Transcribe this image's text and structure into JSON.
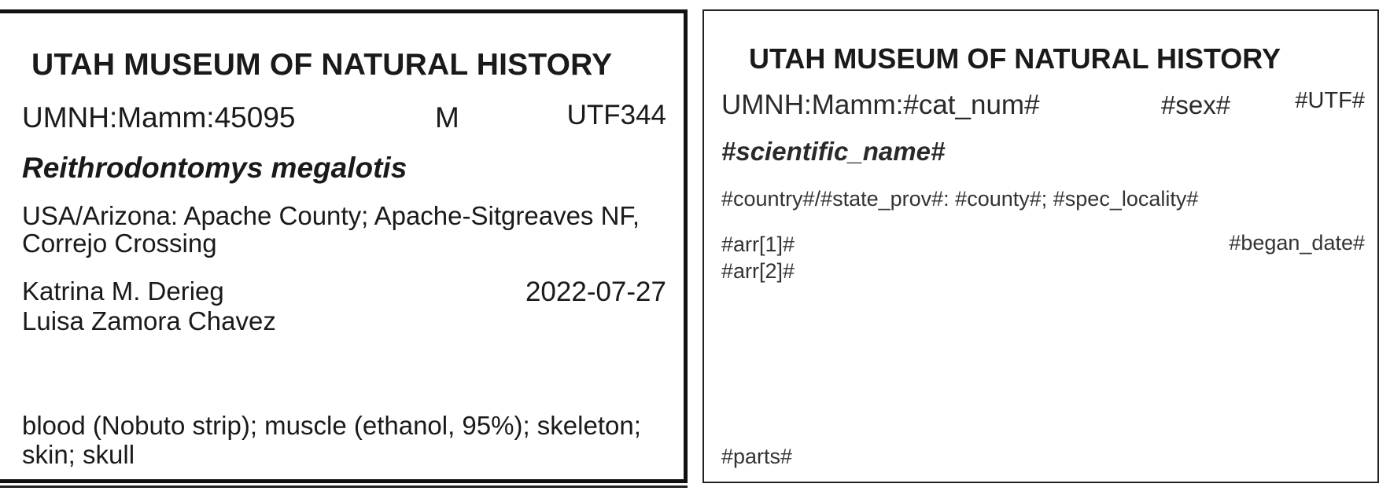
{
  "filled_label": {
    "museum": "UTAH MUSEUM OF NATURAL HISTORY",
    "catalog_number": "UMNH:Mamm:45095",
    "sex": "M",
    "utf": "UTF344",
    "scientific_name": "Reithrodontomys megalotis",
    "locality": "USA/Arizona: Apache County; Apache-Sitgreaves NF, Correjo Crossing",
    "collectors": [
      "Katrina M. Derieg",
      "Luisa Zamora Chavez"
    ],
    "date": "2022-07-27",
    "parts": "blood (Nobuto strip); muscle (ethanol, 95%); skeleton; skin; skull"
  },
  "template_label": {
    "museum": "UTAH MUSEUM OF NATURAL HISTORY",
    "catalog_number": "UMNH:Mamm:#cat_num#",
    "sex": "#sex#",
    "utf": "#UTF#",
    "scientific_name": "#scientific_name#",
    "locality": "#country#/#state_prov#: #county#; #spec_locality#",
    "collectors": [
      "#arr[1]#",
      "#arr[2]#"
    ],
    "date": "#began_date#",
    "parts": "#parts#"
  }
}
